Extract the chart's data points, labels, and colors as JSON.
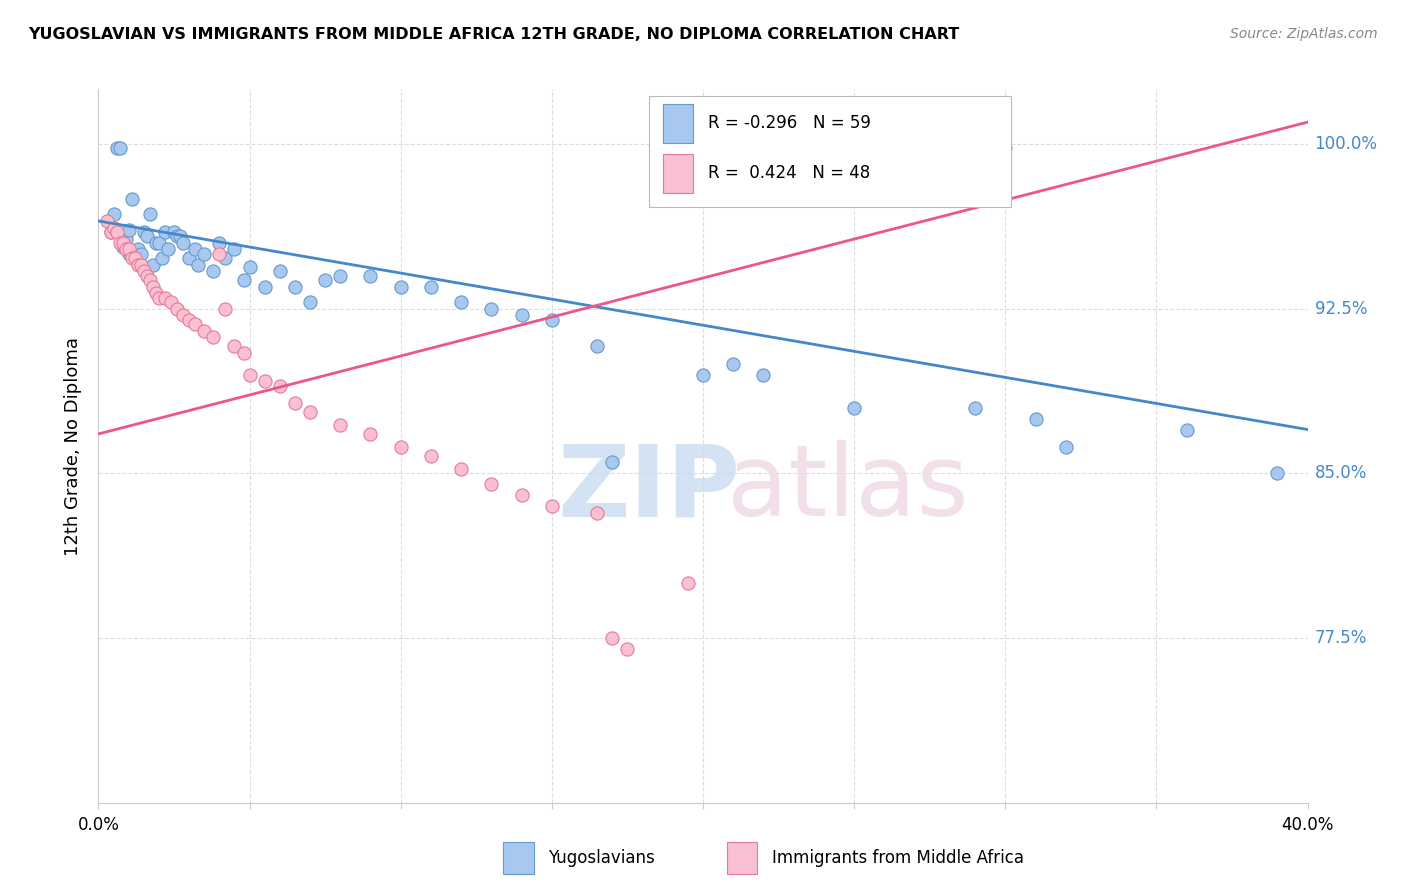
{
  "title": "YUGOSLAVIAN VS IMMIGRANTS FROM MIDDLE AFRICA 12TH GRADE, NO DIPLOMA CORRELATION CHART",
  "source": "Source: ZipAtlas.com",
  "ylabel": "12th Grade, No Diploma",
  "ytick_labels": [
    "77.5%",
    "85.0%",
    "92.5%",
    "100.0%"
  ],
  "ytick_values": [
    0.775,
    0.85,
    0.925,
    1.0
  ],
  "xlim": [
    0.0,
    0.4
  ],
  "ylim": [
    0.7,
    1.025
  ],
  "legend_blue_label": "Yugoslavians",
  "legend_pink_label": "Immigrants from Middle Africa",
  "legend_R_blue": "R = -0.296",
  "legend_N_blue": "N = 59",
  "legend_R_pink": "R =  0.424",
  "legend_N_pink": "N = 48",
  "blue_fill": "#A8C8F0",
  "blue_edge": "#6699CC",
  "pink_fill": "#F8C0D0",
  "pink_edge": "#E87898",
  "blue_line_color": "#4488CC",
  "pink_line_color": "#EE5588",
  "blue_scatter": [
    [
      0.004,
      0.96
    ],
    [
      0.005,
      0.968
    ],
    [
      0.006,
      0.998
    ],
    [
      0.007,
      0.998
    ],
    [
      0.008,
      0.953
    ],
    [
      0.009,
      0.957
    ],
    [
      0.01,
      0.961
    ],
    [
      0.01,
      0.95
    ],
    [
      0.011,
      0.975
    ],
    [
      0.012,
      0.948
    ],
    [
      0.013,
      0.952
    ],
    [
      0.014,
      0.95
    ],
    [
      0.015,
      0.96
    ],
    [
      0.016,
      0.958
    ],
    [
      0.017,
      0.968
    ],
    [
      0.018,
      0.945
    ],
    [
      0.019,
      0.955
    ],
    [
      0.02,
      0.955
    ],
    [
      0.021,
      0.948
    ],
    [
      0.022,
      0.96
    ],
    [
      0.023,
      0.952
    ],
    [
      0.025,
      0.96
    ],
    [
      0.026,
      0.958
    ],
    [
      0.027,
      0.958
    ],
    [
      0.028,
      0.955
    ],
    [
      0.03,
      0.948
    ],
    [
      0.032,
      0.952
    ],
    [
      0.033,
      0.945
    ],
    [
      0.035,
      0.95
    ],
    [
      0.038,
      0.942
    ],
    [
      0.04,
      0.955
    ],
    [
      0.042,
      0.948
    ],
    [
      0.045,
      0.952
    ],
    [
      0.048,
      0.938
    ],
    [
      0.05,
      0.944
    ],
    [
      0.055,
      0.935
    ],
    [
      0.06,
      0.942
    ],
    [
      0.065,
      0.935
    ],
    [
      0.07,
      0.928
    ],
    [
      0.075,
      0.938
    ],
    [
      0.08,
      0.94
    ],
    [
      0.09,
      0.94
    ],
    [
      0.1,
      0.935
    ],
    [
      0.11,
      0.935
    ],
    [
      0.12,
      0.928
    ],
    [
      0.13,
      0.925
    ],
    [
      0.14,
      0.922
    ],
    [
      0.15,
      0.92
    ],
    [
      0.165,
      0.908
    ],
    [
      0.17,
      0.855
    ],
    [
      0.2,
      0.895
    ],
    [
      0.21,
      0.9
    ],
    [
      0.22,
      0.895
    ],
    [
      0.25,
      0.88
    ],
    [
      0.29,
      0.88
    ],
    [
      0.31,
      0.875
    ],
    [
      0.32,
      0.862
    ],
    [
      0.36,
      0.87
    ],
    [
      0.39,
      0.85
    ]
  ],
  "pink_scatter": [
    [
      0.003,
      0.965
    ],
    [
      0.004,
      0.96
    ],
    [
      0.005,
      0.962
    ],
    [
      0.006,
      0.96
    ],
    [
      0.007,
      0.955
    ],
    [
      0.008,
      0.955
    ],
    [
      0.009,
      0.952
    ],
    [
      0.01,
      0.952
    ],
    [
      0.011,
      0.948
    ],
    [
      0.012,
      0.948
    ],
    [
      0.013,
      0.945
    ],
    [
      0.014,
      0.945
    ],
    [
      0.015,
      0.942
    ],
    [
      0.016,
      0.94
    ],
    [
      0.017,
      0.938
    ],
    [
      0.018,
      0.935
    ],
    [
      0.019,
      0.932
    ],
    [
      0.02,
      0.93
    ],
    [
      0.022,
      0.93
    ],
    [
      0.024,
      0.928
    ],
    [
      0.026,
      0.925
    ],
    [
      0.028,
      0.922
    ],
    [
      0.03,
      0.92
    ],
    [
      0.032,
      0.918
    ],
    [
      0.035,
      0.915
    ],
    [
      0.038,
      0.912
    ],
    [
      0.04,
      0.95
    ],
    [
      0.042,
      0.925
    ],
    [
      0.045,
      0.908
    ],
    [
      0.048,
      0.905
    ],
    [
      0.05,
      0.895
    ],
    [
      0.055,
      0.892
    ],
    [
      0.06,
      0.89
    ],
    [
      0.065,
      0.882
    ],
    [
      0.07,
      0.878
    ],
    [
      0.08,
      0.872
    ],
    [
      0.09,
      0.868
    ],
    [
      0.1,
      0.862
    ],
    [
      0.11,
      0.858
    ],
    [
      0.12,
      0.852
    ],
    [
      0.13,
      0.845
    ],
    [
      0.14,
      0.84
    ],
    [
      0.15,
      0.835
    ],
    [
      0.165,
      0.832
    ],
    [
      0.17,
      0.775
    ],
    [
      0.175,
      0.77
    ],
    [
      0.195,
      0.8
    ],
    [
      0.3,
      0.998
    ]
  ],
  "blue_trendline": [
    [
      0.0,
      0.965
    ],
    [
      0.4,
      0.87
    ]
  ],
  "pink_trendline": [
    [
      0.0,
      0.868
    ],
    [
      0.4,
      1.01
    ]
  ],
  "watermark_zip": "ZIP",
  "watermark_atlas": "atlas",
  "background_color": "#FFFFFF",
  "grid_color": "#DDDDDD"
}
